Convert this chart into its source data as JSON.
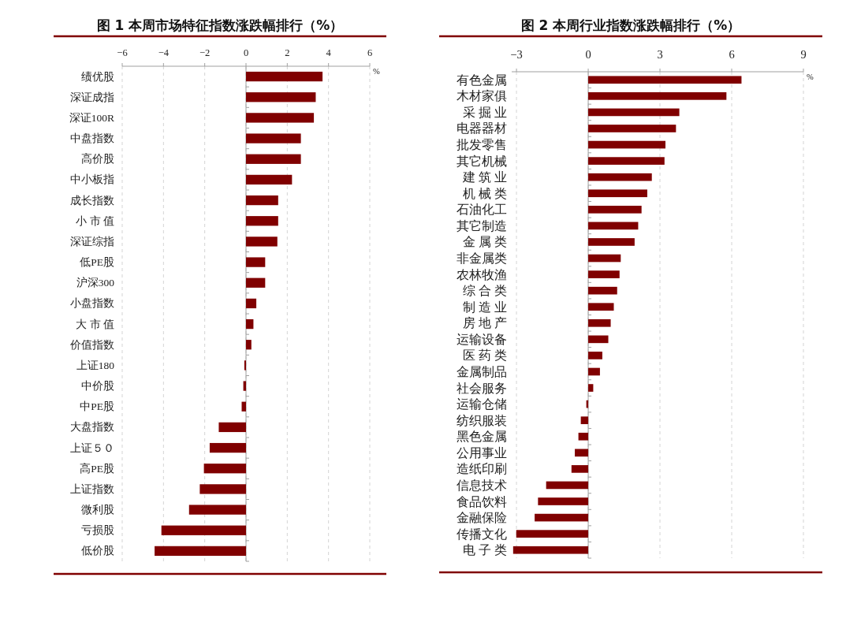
{
  "chart_data": [
    {
      "type": "bar",
      "orientation": "horizontal",
      "title": "图 1 本周市场特征指数涨跌幅排行（%）",
      "xlabel": "%",
      "color": "#800000",
      "grid": "x",
      "xlim": [
        -6,
        6
      ],
      "xticks": [
        -6,
        -4,
        -2,
        0,
        2,
        4,
        6
      ],
      "categories": [
        "绩优股",
        "深证成指",
        "深证100R",
        "中盘指数",
        "高价股",
        "中小板指",
        "成长指数",
        "小 市 值",
        "深证综指",
        "低PE股",
        "沪深300",
        "小盘指数",
        "大 市 值",
        "价值指数",
        "上证180",
        "中价股",
        "中PE股",
        "大盘指数",
        "上证５０",
        "高PE股",
        "上证指数",
        "微利股",
        "亏损股",
        "低价股"
      ],
      "values": [
        3.71,
        3.38,
        3.29,
        2.66,
        2.66,
        2.23,
        1.56,
        1.56,
        1.52,
        0.93,
        0.93,
        0.5,
        0.36,
        0.26,
        -0.08,
        -0.13,
        -0.21,
        -1.32,
        -1.76,
        -2.04,
        -2.24,
        -2.76,
        -4.1,
        -4.43
      ]
    },
    {
      "type": "bar",
      "orientation": "horizontal",
      "title": "图 2 本周行业指数涨跌幅排行（%）",
      "xlabel": "%",
      "color": "#800000",
      "grid": "x",
      "xlim": [
        -3.2,
        9
      ],
      "xticks": [
        -3,
        0,
        3,
        6,
        9
      ],
      "categories": [
        "有色金属",
        "木材家俱",
        "采 掘 业",
        "电器器材",
        "批发零售",
        "其它机械",
        "建 筑 业",
        "机 械 类",
        "石油化工",
        "其它制造",
        "金 属 类",
        "非金属类",
        "农林牧渔",
        "综 合 类",
        "制 造 业",
        "房 地 产",
        "运输设备",
        "医 药 类",
        "金属制品",
        "社会服务",
        "运输仓储",
        "纺织服装",
        "黑色金属",
        "公用事业",
        "造纸印刷",
        "信息技术",
        "食品饮料",
        "金融保险",
        "传播文化",
        "电 子 类"
      ],
      "values": [
        6.41,
        5.78,
        3.81,
        3.67,
        3.23,
        3.19,
        2.66,
        2.47,
        2.23,
        2.09,
        1.94,
        1.36,
        1.31,
        1.21,
        1.07,
        0.94,
        0.84,
        0.59,
        0.49,
        0.21,
        -0.08,
        -0.31,
        -0.41,
        -0.56,
        -0.7,
        -1.76,
        -2.1,
        -2.24,
        -3.01,
        -3.14
      ]
    }
  ]
}
